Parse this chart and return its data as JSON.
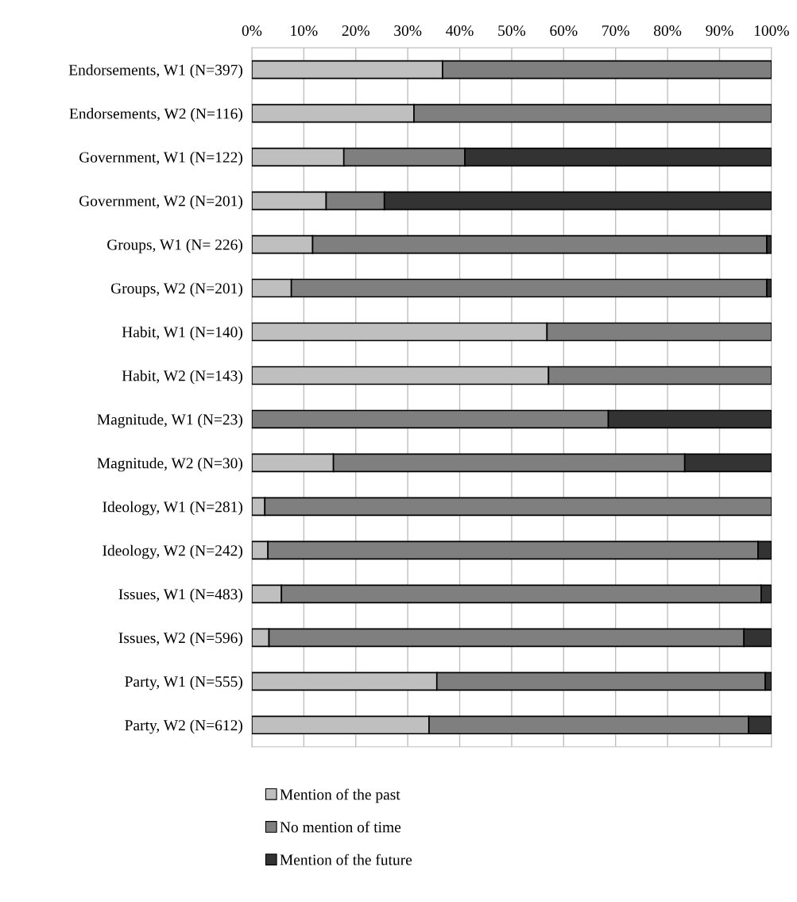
{
  "chart_data": {
    "type": "bar",
    "orientation": "horizontal",
    "stacked": true,
    "categories": [
      "Endorsements, W1 (N=397)",
      "Endorsements, W2 (N=116)",
      "Government, W1 (N=122)",
      "Government, W2 (N=201)",
      "Groups, W1 (N= 226)",
      "Groups, W2 (N=201)",
      "Habit, W1 (N=140)",
      "Habit, W2 (N=143)",
      "Magnitude, W1 (N=23)",
      "Magnitude, W2 (N=30)",
      "Ideology, W1 (N=281)",
      "Ideology, W2 (N=242)",
      "Issues, W1 (N=483)",
      "Issues, W2 (N=596)",
      "Party, W1 (N=555)",
      "Party, W2 (N=612)"
    ],
    "series": [
      {
        "name": "Mention of the past",
        "color": "#bfbfbf",
        "values": [
          36.7,
          31.2,
          17.7,
          14.3,
          11.7,
          7.6,
          56.8,
          57.1,
          0,
          15.7,
          2.5,
          3.1,
          5.7,
          3.3,
          35.6,
          34.1
        ]
      },
      {
        "name": "No mention of time",
        "color": "#7f7f7f",
        "values": [
          63.3,
          68.8,
          23.3,
          11.2,
          87.4,
          91.5,
          43.2,
          42.9,
          68.6,
          67.6,
          97.5,
          94.3,
          92.3,
          91.4,
          63.2,
          61.5
        ]
      },
      {
        "name": "Mention of the future",
        "color": "#333333",
        "values": [
          0,
          0,
          59.0,
          74.5,
          0.9,
          0.9,
          0,
          0,
          31.4,
          16.7,
          0,
          2.6,
          2.0,
          5.3,
          1.2,
          4.4
        ]
      }
    ],
    "xlim": [
      0,
      100
    ],
    "xticks": [
      {
        "value": 0,
        "label": "0%"
      },
      {
        "value": 10,
        "label": "10%"
      },
      {
        "value": 20,
        "label": "20%"
      },
      {
        "value": 30,
        "label": "30%"
      },
      {
        "value": 40,
        "label": "40%"
      },
      {
        "value": 50,
        "label": "50%"
      },
      {
        "value": 60,
        "label": "60%"
      },
      {
        "value": 70,
        "label": "70%"
      },
      {
        "value": 80,
        "label": "80%"
      },
      {
        "value": 90,
        "label": "90%"
      },
      {
        "value": 100,
        "label": "100%"
      }
    ],
    "grid": "x",
    "legend": "bottom"
  }
}
